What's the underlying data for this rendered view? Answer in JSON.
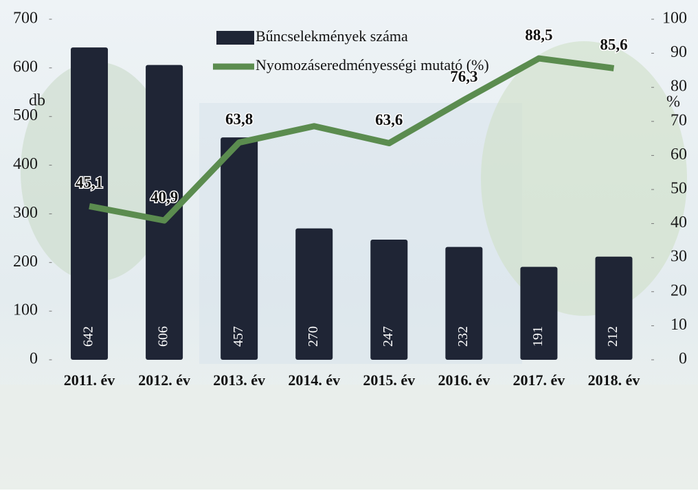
{
  "chart_data": {
    "type": "bar",
    "categories": [
      "2011. év",
      "2012. év",
      "2013. év",
      "2014. év",
      "2015. év",
      "2016. év",
      "2017. év",
      "2018. év"
    ],
    "series": [
      {
        "name": "Bűncselekmények száma",
        "color": "#1f2535",
        "values": [
          642,
          606,
          457,
          270,
          247,
          232,
          191,
          212
        ]
      },
      {
        "name": "Nyomozáseredményességi mutató (%)",
        "color": "#5b8c4f",
        "type": "line",
        "axis": "y2",
        "values": [
          45.1,
          40.9,
          63.8,
          68.6,
          63.6,
          76.3,
          88.5,
          85.6
        ],
        "value_labels": [
          "45,1",
          "40,9",
          "63,8",
          null,
          "63,6",
          "76,3",
          "88,5",
          "85,6"
        ]
      }
    ],
    "y_label": "db",
    "y2_label": "%",
    "ylim": [
      0,
      700
    ],
    "yticks": [
      0,
      100,
      200,
      300,
      400,
      500,
      600,
      700
    ],
    "y2lim": [
      0,
      100
    ],
    "y2ticks": [
      0,
      10,
      20,
      30,
      40,
      50,
      60,
      70,
      80,
      90,
      100
    ],
    "grid": false
  }
}
